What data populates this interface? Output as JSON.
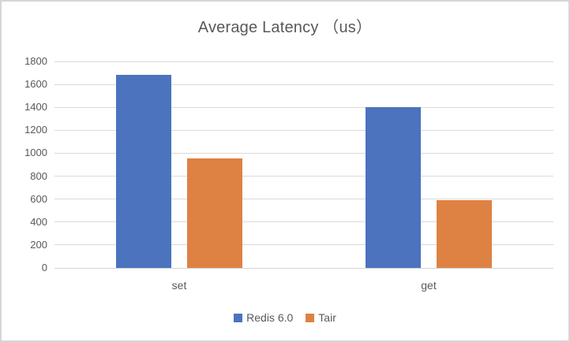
{
  "chart": {
    "title": "Average Latency （us）",
    "colors": {
      "grid": "#dadada",
      "axis_text": "#595959",
      "title_text": "#595959",
      "frame_border": "#d6d6d6",
      "background": "#ffffff"
    }
  },
  "chart_data": {
    "type": "bar",
    "title": "Average Latency （us）",
    "categories": [
      "set",
      "get"
    ],
    "series": [
      {
        "name": "Redis 6.0",
        "color": "#4b73be",
        "values": [
          1680,
          1400
        ]
      },
      {
        "name": "Tair",
        "color": "#de8244",
        "values": [
          955,
          590
        ]
      }
    ],
    "xlabel": "",
    "ylabel": "",
    "ylim": [
      0,
      1800
    ],
    "ytick_step": 200,
    "yticks": [
      0,
      200,
      400,
      600,
      800,
      1000,
      1200,
      1400,
      1600,
      1800
    ],
    "grid": true,
    "legend_position": "bottom"
  }
}
